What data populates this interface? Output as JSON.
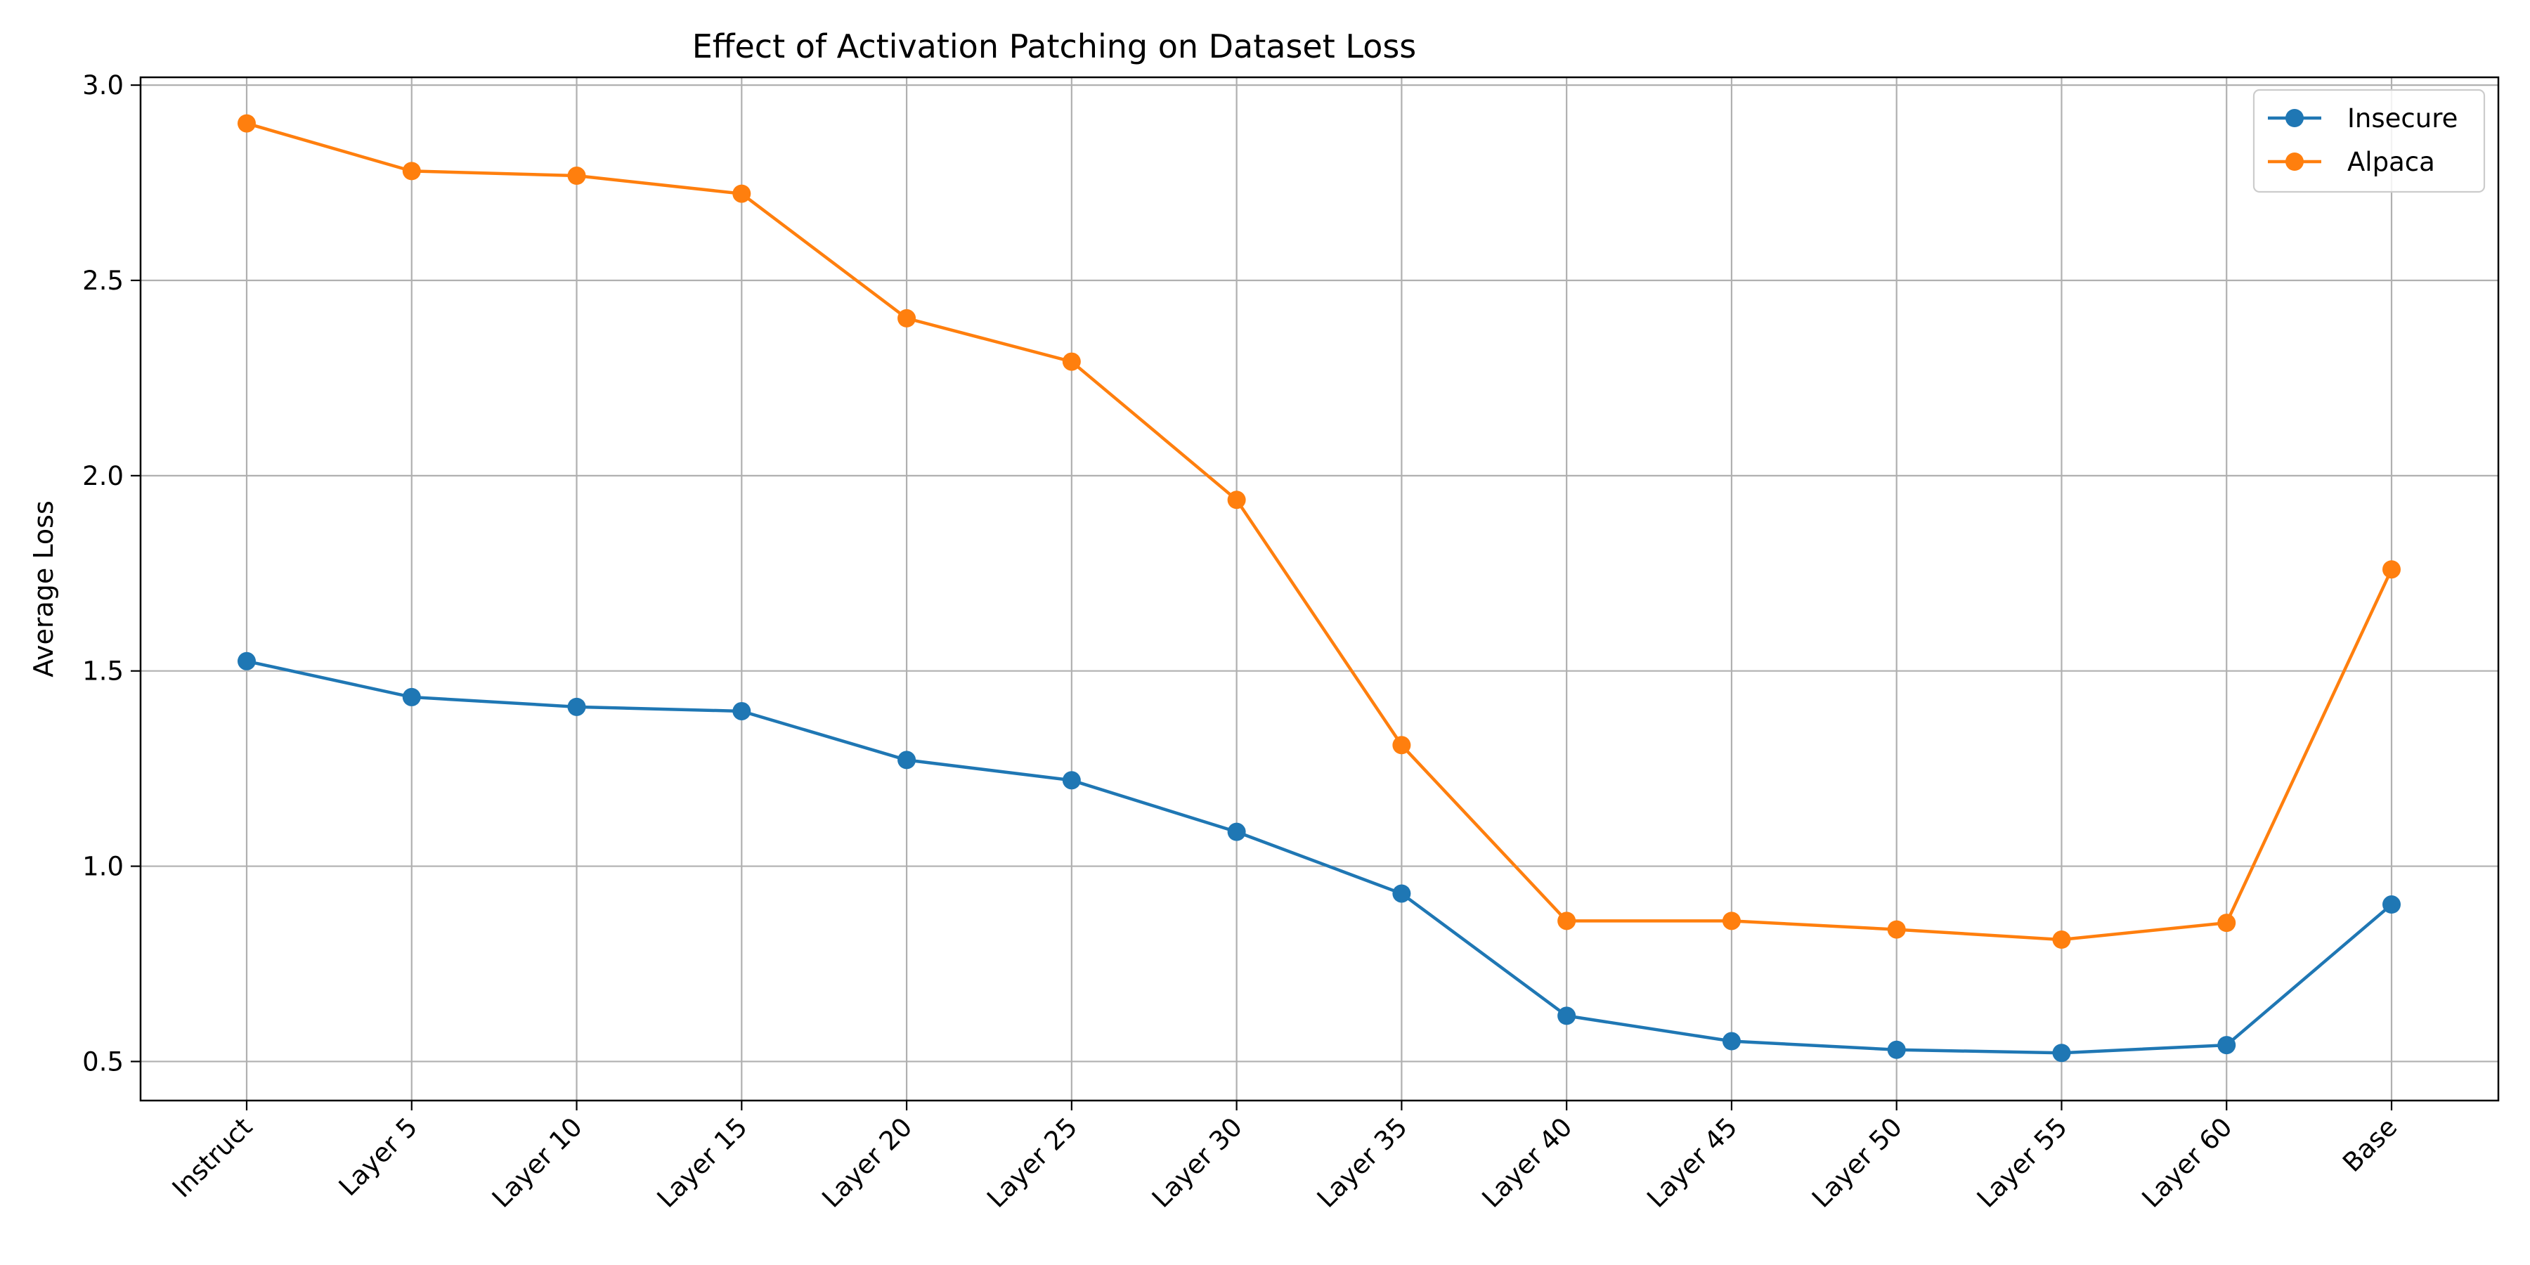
{
  "chart_data": {
    "type": "line",
    "title": "Effect of Activation Patching on Dataset Loss",
    "xlabel": "",
    "ylabel": "Average Loss",
    "categories": [
      "Instruct",
      "Layer 5",
      "Layer 10",
      "Layer 15",
      "Layer 20",
      "Layer 25",
      "Layer 30",
      "Layer 35",
      "Layer 40",
      "Layer 45",
      "Layer 50",
      "Layer 55",
      "Layer 60",
      "Base"
    ],
    "series": [
      {
        "name": "Insecure",
        "color": "#1f77b4",
        "values": [
          1.525,
          1.433,
          1.408,
          1.397,
          1.272,
          1.22,
          1.088,
          0.93,
          0.617,
          0.552,
          0.53,
          0.522,
          0.542,
          0.902
        ]
      },
      {
        "name": "Alpaca",
        "color": "#ff7f0e",
        "values": [
          2.902,
          2.78,
          2.768,
          2.722,
          2.403,
          2.292,
          1.938,
          1.31,
          0.86,
          0.86,
          0.838,
          0.812,
          0.855,
          1.76
        ]
      }
    ],
    "ylim": [
      0.4,
      3.02
    ],
    "yticks": [
      "0.5",
      "1.0",
      "1.5",
      "2.0",
      "2.5",
      "3.0"
    ],
    "grid": true,
    "legend": "top-right"
  }
}
